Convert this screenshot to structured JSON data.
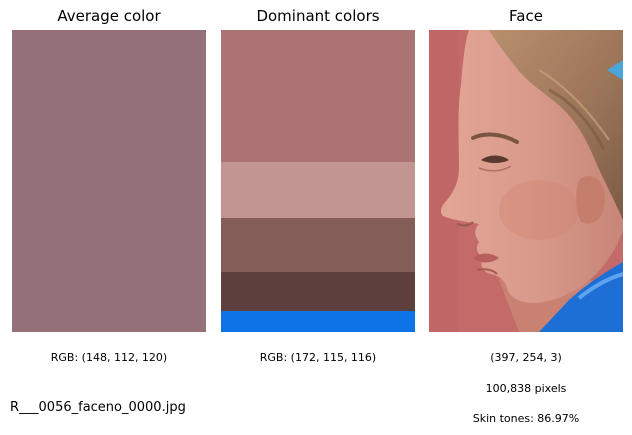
{
  "panels": {
    "average": {
      "title": "Average color",
      "color": "#947078",
      "rgb_label": "RGB: (148, 112, 120)"
    },
    "dominant": {
      "title": "Dominant colors",
      "rgb_label": "RGB: (172, 115, 116)",
      "colors": [
        {
          "color": "#ac7374",
          "fraction": 0.437
        },
        {
          "color": "#c39592",
          "fraction": 0.185
        },
        {
          "color": "#845d59",
          "fraction": 0.179
        },
        {
          "color": "#5d3f3d",
          "fraction": 0.129
        },
        {
          "color": "#0d73e6",
          "fraction": 0.07
        }
      ]
    },
    "face": {
      "title": "Face",
      "shape_label": "(397, 254, 3)",
      "pixels_label": "100,838 pixels",
      "skin_label": "Skin tones: 86.97%"
    }
  },
  "filename": "R___0056_faceno_0000.jpg"
}
